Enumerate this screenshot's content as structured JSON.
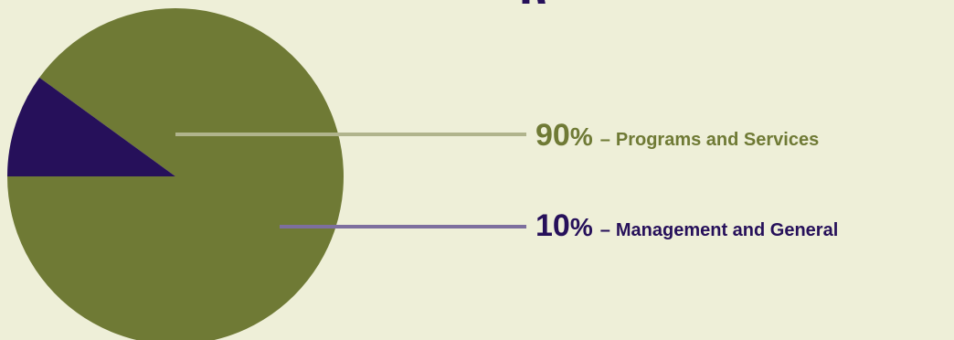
{
  "page": {
    "title_fragment": "p",
    "background": "#eeefd8"
  },
  "chart_data": {
    "type": "pie",
    "slices": [
      {
        "label": "Programs and Services",
        "value": 90,
        "percent_text": "90",
        "percent_sign": "%",
        "separator": "–",
        "color": "#6f7a35",
        "leader_color": "#b0b48c"
      },
      {
        "label": "Management and General",
        "value": 10,
        "percent_text": "10",
        "percent_sign": "%",
        "separator": "–",
        "color": "#26105a",
        "leader_color": "#7d6f9e"
      }
    ]
  }
}
